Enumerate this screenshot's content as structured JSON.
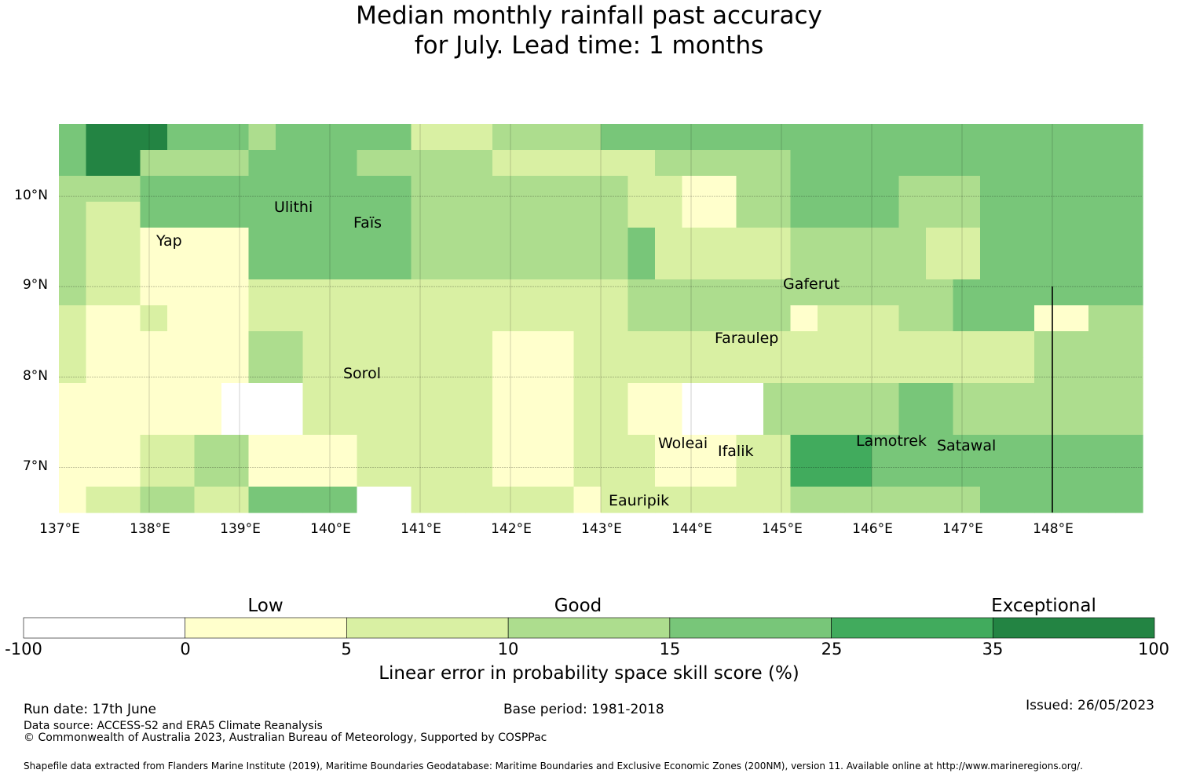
{
  "title": {
    "line1": "Median monthly rainfall past accuracy",
    "line2": "for July. Lead time: 1 months"
  },
  "map": {
    "x_ticks": [
      "137°E",
      "138°E",
      "139°E",
      "140°E",
      "141°E",
      "142°E",
      "143°E",
      "144°E",
      "145°E",
      "146°E",
      "147°E",
      "148°E"
    ],
    "y_ticks": [
      "10°N",
      "9°N",
      "8°N",
      "7°N"
    ],
    "places": [
      {
        "id": "ulithi",
        "name": "Ulithi"
      },
      {
        "id": "fais",
        "name": "Faïs"
      },
      {
        "id": "yap",
        "name": "Yap"
      },
      {
        "id": "gaferut",
        "name": "Gaferut"
      },
      {
        "id": "faraulep",
        "name": "Faraulep"
      },
      {
        "id": "sorol",
        "name": "Sorol"
      },
      {
        "id": "woleai",
        "name": "Woleai"
      },
      {
        "id": "ifalik",
        "name": "Ifalik"
      },
      {
        "id": "lamotrek",
        "name": "Lamotrek"
      },
      {
        "id": "satawal",
        "name": "Satawal"
      },
      {
        "id": "eauripik",
        "name": "Eauripik"
      }
    ],
    "class_colors": [
      "#ffffff",
      "#ffffcc",
      "#d9f0a3",
      "#addd8e",
      "#78c679",
      "#41ab5d",
      "#238443"
    ],
    "grid_rows": [
      "4666444344444222333344444444444444444444",
      "4663333444433333222222333334444444444444",
      "3334444444444333333332211334444333444444",
      "3224444444444333333332211334444333444444",
      "3221111444444333333334222223333322444444",
      "3221111444444333333334222223333322444444",
      "3221111222222222222223333333333334444444",
      "2112111222222222222223333331222334441133",
      "2111111332222222111222222222222222223333",
      "2111111332222222111222222222222222223333",
      "1111110002222222111221100033333443333333",
      "1111110002222222111221100033333443333333",
      "1112233111122222111222111225554444444444",
      "1112233111122222111222111225554444444444",
      "1223322444400222222122222223333333444444"
    ],
    "grid_lon_range": [
      137.0,
      149.0
    ],
    "grid_lat_range": [
      10.8,
      6.5
    ]
  },
  "colorbar": {
    "categories": [
      "Low",
      "Good",
      "Exceptional"
    ],
    "ticks": [
      "-100",
      "0",
      "5",
      "10",
      "15",
      "25",
      "35",
      "100"
    ],
    "label": "Linear error in probability space skill score (%)"
  },
  "footer": {
    "run_date": "Run date: 17th June",
    "base_period": "Base period: 1981-2018",
    "issued": "Issued: 26/05/2023",
    "data_source": "Data source: ACCESS-S2 and ERA5 Climate Reanalysis",
    "copyright": "© Commonwealth of Australia 2023, Australian Bureau of Meteorology, Supported by COSPPac",
    "shapefile": "Shapefile data extracted from Flanders Marine Institute (2019), Maritime Boundaries Geodatabase: Maritime Boundaries and Exclusive Economic Zones (200NM), version 11. Available online at http://www.marineregions.org/."
  }
}
